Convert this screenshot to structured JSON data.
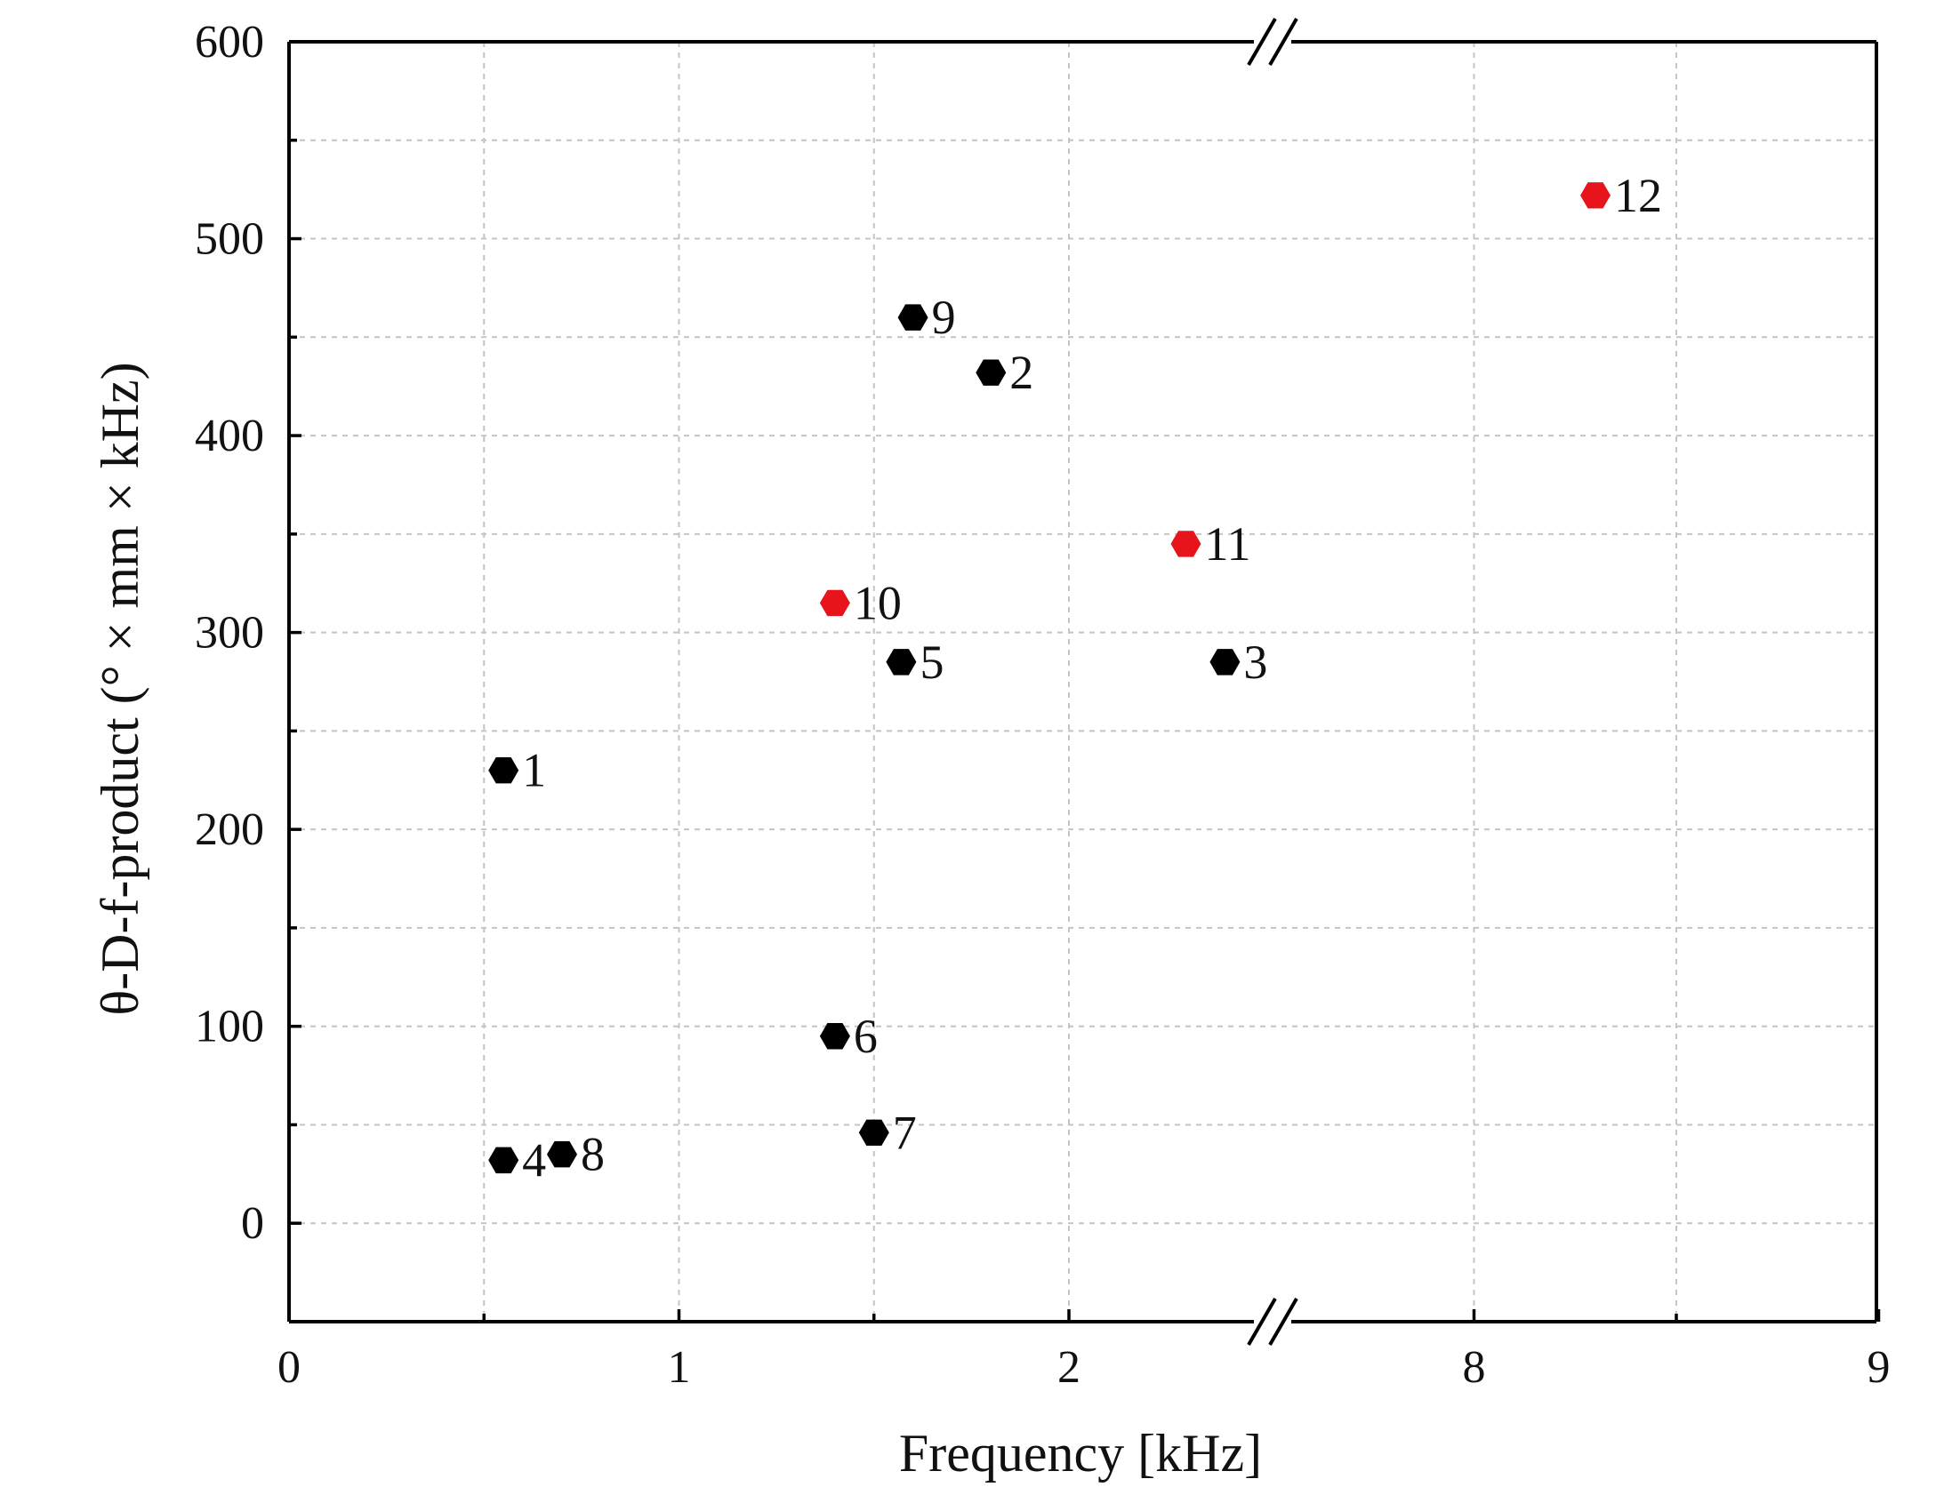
{
  "chart_data": {
    "type": "scatter",
    "title": "",
    "xlabel": "Frequency [kHz]",
    "ylabel": "θ-D-f-product (° × mm × kHz)",
    "ylim": [
      -50,
      600
    ],
    "x_axis_break": {
      "lower_segment": [
        0,
        2.5
      ],
      "upper_segment": [
        7.5,
        9
      ]
    },
    "x_ticks": [
      {
        "value": 0,
        "label": "0"
      },
      {
        "value": 1,
        "label": "1"
      },
      {
        "value": 2,
        "label": "2"
      },
      {
        "value": 8,
        "label": "8"
      },
      {
        "value": 9,
        "label": "9"
      }
    ],
    "y_ticks": [
      {
        "value": 0,
        "label": "0"
      },
      {
        "value": 100,
        "label": "100"
      },
      {
        "value": 200,
        "label": "200"
      },
      {
        "value": 300,
        "label": "300"
      },
      {
        "value": 400,
        "label": "400"
      },
      {
        "value": 500,
        "label": "500"
      },
      {
        "value": 600,
        "label": "600"
      }
    ],
    "grid": true,
    "marker": "hexagon",
    "colors": {
      "black": "#000000",
      "red": "#e8141b"
    },
    "points": [
      {
        "id": "1",
        "label": "1",
        "x": 0.55,
        "y": 230,
        "color": "black"
      },
      {
        "id": "2",
        "label": "2",
        "x": 1.8,
        "y": 432,
        "color": "black"
      },
      {
        "id": "3",
        "label": "3",
        "x": 2.4,
        "y": 285,
        "color": "black"
      },
      {
        "id": "4",
        "label": "4",
        "x": 0.55,
        "y": 32,
        "color": "black"
      },
      {
        "id": "5",
        "label": "5",
        "x": 1.57,
        "y": 285,
        "color": "black"
      },
      {
        "id": "6",
        "label": "6",
        "x": 1.4,
        "y": 95,
        "color": "black"
      },
      {
        "id": "7",
        "label": "7",
        "x": 1.5,
        "y": 46,
        "color": "black"
      },
      {
        "id": "8",
        "label": "8",
        "x": 0.7,
        "y": 35,
        "color": "black"
      },
      {
        "id": "9",
        "label": "9",
        "x": 1.6,
        "y": 460,
        "color": "black"
      },
      {
        "id": "10",
        "label": "10",
        "x": 1.4,
        "y": 315,
        "color": "red"
      },
      {
        "id": "11",
        "label": "11",
        "x": 2.3,
        "y": 345,
        "color": "red"
      },
      {
        "id": "12",
        "label": "12",
        "x": 8.3,
        "y": 522,
        "color": "red"
      }
    ]
  }
}
